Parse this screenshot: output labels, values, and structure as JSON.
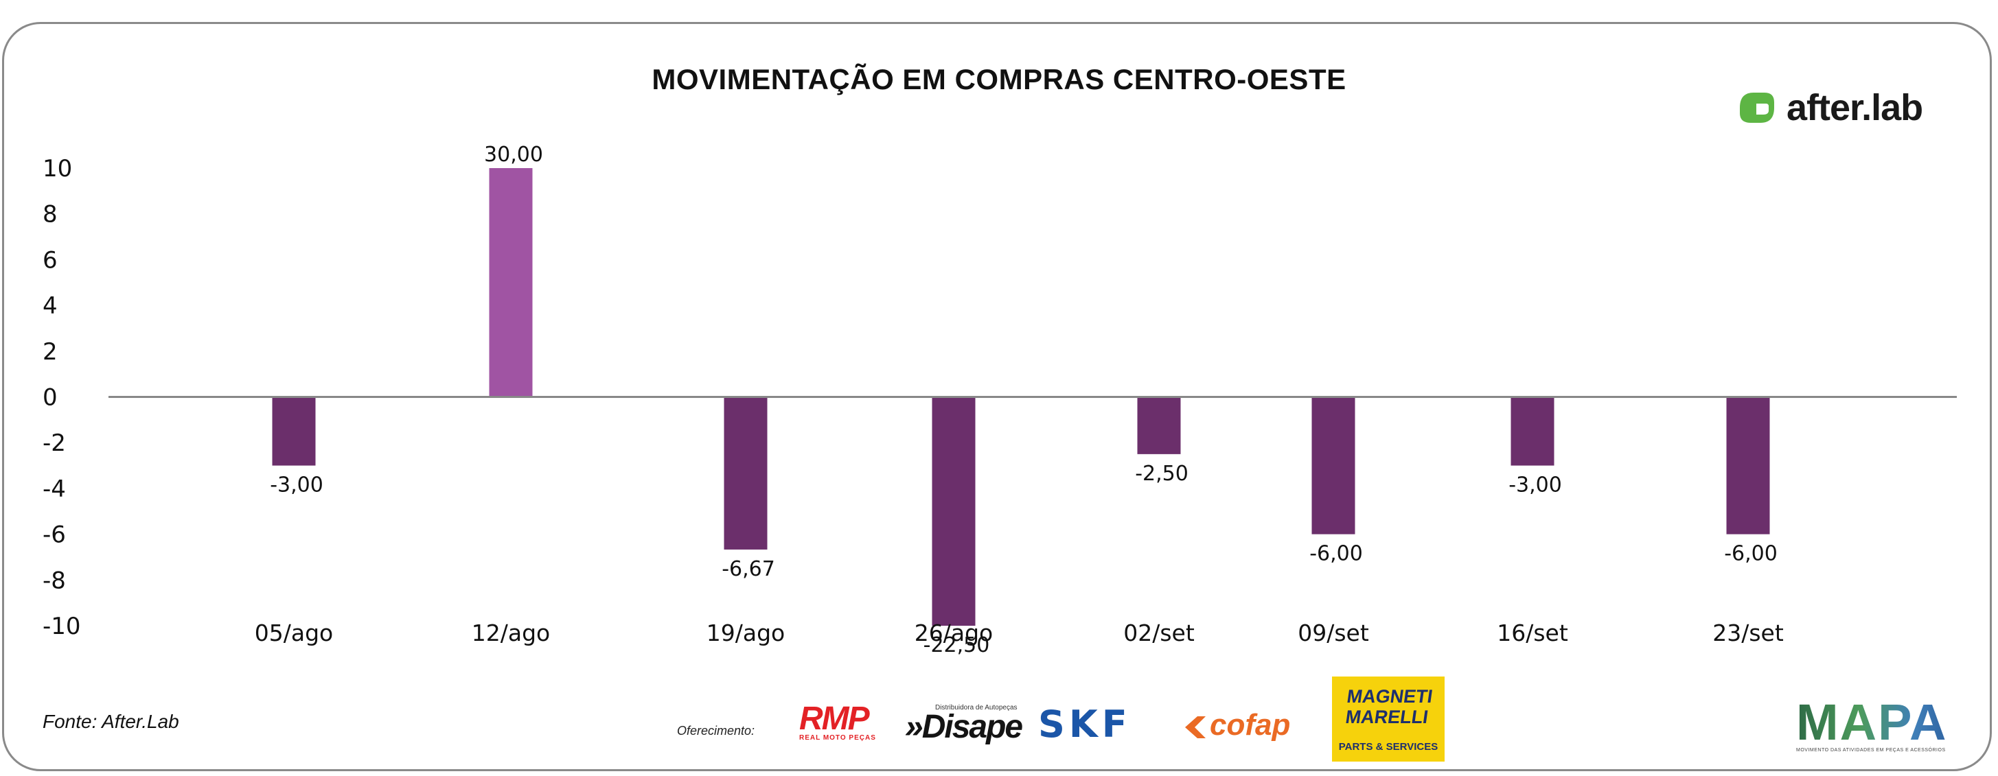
{
  "chart_data": {
    "type": "bar",
    "title": "MOVIMENTAÇÃO EM COMPRAS CENTRO-OESTE",
    "categories": [
      "05/ago",
      "12/ago",
      "19/ago",
      "26/ago",
      "02/set",
      "09/set",
      "16/set",
      "23/set"
    ],
    "values": [
      -3.0,
      30.0,
      -6.67,
      -22.5,
      -2.5,
      -6.0,
      -3.0,
      -6.0
    ],
    "data_labels": [
      "-3,00",
      "30,00",
      "-6,67",
      "-22,50",
      "-2,50",
      "-6,00",
      "-3,00",
      "-6,00"
    ],
    "y_ticks": [
      10,
      8,
      6,
      4,
      2,
      0,
      -2,
      -4,
      -6,
      -8,
      -10
    ],
    "y_tick_labels": [
      "10",
      "8",
      "6",
      "4",
      "2",
      "0",
      "-2",
      "-4",
      "-6",
      "-8",
      "-10"
    ],
    "ylim": [
      -10,
      10
    ],
    "xlabel": "",
    "ylabel": "",
    "grid": false,
    "colors": {
      "positive": "#a054a3",
      "negative": "#6b2f6b",
      "zero_line": "#888888"
    }
  },
  "branding": {
    "brand": "after.lab",
    "brand_color": "#5db544",
    "source": "Fonte: After.Lab",
    "sponsor_label": "Oferecimento:"
  },
  "sponsors": {
    "rmp": {
      "name": "RMP",
      "sub": "REAL MOTO PEÇAS"
    },
    "disape": {
      "name": "»Disape",
      "sub": "Distribuidora de Autopeças"
    },
    "skf": {
      "name": "SKF"
    },
    "cofap": {
      "name": "cofap"
    },
    "magneti": {
      "line1": "MAGNETI",
      "line2": "MARELLI",
      "sub": "PARTS & SERVICES"
    },
    "mapa": {
      "name": "MAPA",
      "sub": "MOVIMENTO DAS ATIVIDADES EM PEÇAS E ACESSÓRIOS"
    }
  }
}
